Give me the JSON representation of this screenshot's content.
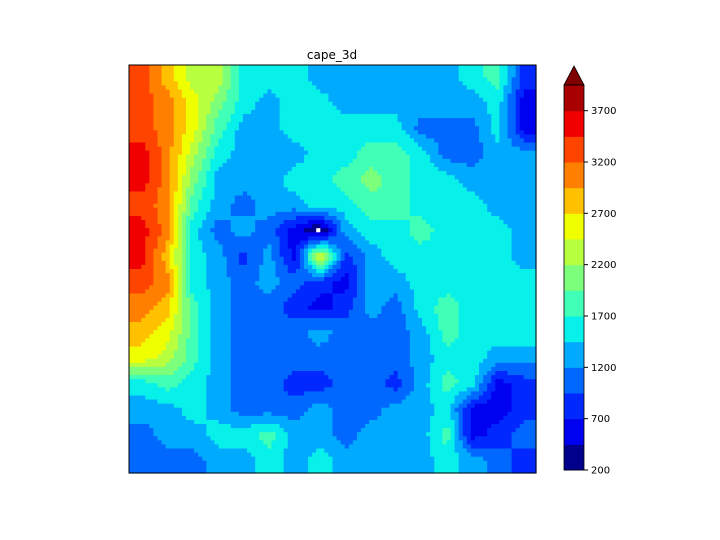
{
  "chart_data": {
    "type": "contourf",
    "title": "cape_3d",
    "variable": "cape_3d",
    "levels": [
      200,
      450,
      700,
      950,
      1200,
      1450,
      1700,
      1950,
      2200,
      2450,
      2700,
      2950,
      3200,
      3450,
      3700,
      3950
    ],
    "extend": "max",
    "below_range_color": "#ffffff",
    "colors": [
      "#00008c",
      "#0000f0",
      "#0028ff",
      "#0068ff",
      "#00aaff",
      "#08f0ea",
      "#40ffb6",
      "#7cff7a",
      "#b8ff40",
      "#f0ff00",
      "#ffc000",
      "#ff8000",
      "#ff4400",
      "#f00000",
      "#a80000"
    ],
    "over_color": "#800000",
    "colorbar": {
      "ticks": [
        200,
        700,
        1200,
        1700,
        2200,
        2700,
        3200,
        3700
      ],
      "tick_labels": [
        "200",
        "700",
        "1200",
        "1700",
        "2200",
        "2700",
        "3200",
        "3700"
      ],
      "placement": "right"
    },
    "axes_visible": false,
    "z": [
      [
        3325,
        2825,
        2325,
        2325,
        1575,
        1575,
        1575,
        1325,
        1325,
        1325,
        1325,
        1325,
        1325,
        1575,
        1825,
        825
      ],
      [
        3325,
        3075,
        2575,
        2075,
        1575,
        1325,
        1575,
        1575,
        1325,
        1325,
        1325,
        1325,
        1325,
        1325,
        1575,
        575
      ],
      [
        3325,
        3075,
        2575,
        1825,
        1325,
        1325,
        1575,
        1575,
        1575,
        1575,
        1575,
        1075,
        1075,
        1075,
        1575,
        575
      ],
      [
        3575,
        3075,
        2325,
        1575,
        1325,
        1325,
        1325,
        1575,
        1575,
        1825,
        1825,
        1575,
        1075,
        1075,
        1325,
        1325
      ],
      [
        3575,
        3075,
        2075,
        1325,
        1325,
        1325,
        1575,
        1575,
        1825,
        2075,
        1825,
        1575,
        1575,
        1325,
        1325,
        1325
      ],
      [
        3325,
        3075,
        1825,
        1325,
        1075,
        1325,
        1325,
        1575,
        1575,
        1825,
        1825,
        1575,
        1575,
        1575,
        1325,
        1325
      ],
      [
        3575,
        3075,
        1575,
        1075,
        1325,
        1075,
        575,
        100,
        1325,
        1575,
        1575,
        1825,
        1575,
        1575,
        1575,
        1325
      ],
      [
        3575,
        2825,
        1575,
        1325,
        825,
        1325,
        575,
        2575,
        825,
        1325,
        1575,
        1575,
        1575,
        1575,
        1575,
        1325
      ],
      [
        3325,
        3075,
        1575,
        1325,
        1075,
        1325,
        1075,
        825,
        575,
        1325,
        1325,
        1575,
        1575,
        1575,
        1575,
        1575
      ],
      [
        3075,
        2825,
        1825,
        1325,
        1075,
        1075,
        825,
        575,
        825,
        1325,
        1075,
        1575,
        1825,
        1575,
        1575,
        1575
      ],
      [
        2825,
        2575,
        1825,
        1325,
        1075,
        1075,
        1075,
        1325,
        1075,
        1075,
        1075,
        1325,
        1825,
        1575,
        1575,
        1575
      ],
      [
        2575,
        2325,
        1825,
        1325,
        1075,
        1075,
        1075,
        1075,
        1075,
        1075,
        1075,
        1325,
        1575,
        1575,
        1325,
        1325
      ],
      [
        1575,
        1825,
        1575,
        1325,
        1075,
        1075,
        825,
        825,
        1075,
        1075,
        825,
        1325,
        1825,
        1575,
        575,
        825
      ],
      [
        1325,
        1325,
        1575,
        1325,
        1075,
        1075,
        1075,
        1325,
        1075,
        1075,
        1325,
        1325,
        1575,
        575,
        575,
        825
      ],
      [
        1075,
        1325,
        1325,
        1575,
        1575,
        1825,
        1325,
        1325,
        1075,
        1325,
        1325,
        1325,
        1825,
        575,
        825,
        1075
      ],
      [
        1075,
        1075,
        1075,
        1325,
        1325,
        1575,
        1325,
        1575,
        1325,
        1325,
        1325,
        1325,
        1575,
        1325,
        1075,
        825
      ]
    ]
  }
}
